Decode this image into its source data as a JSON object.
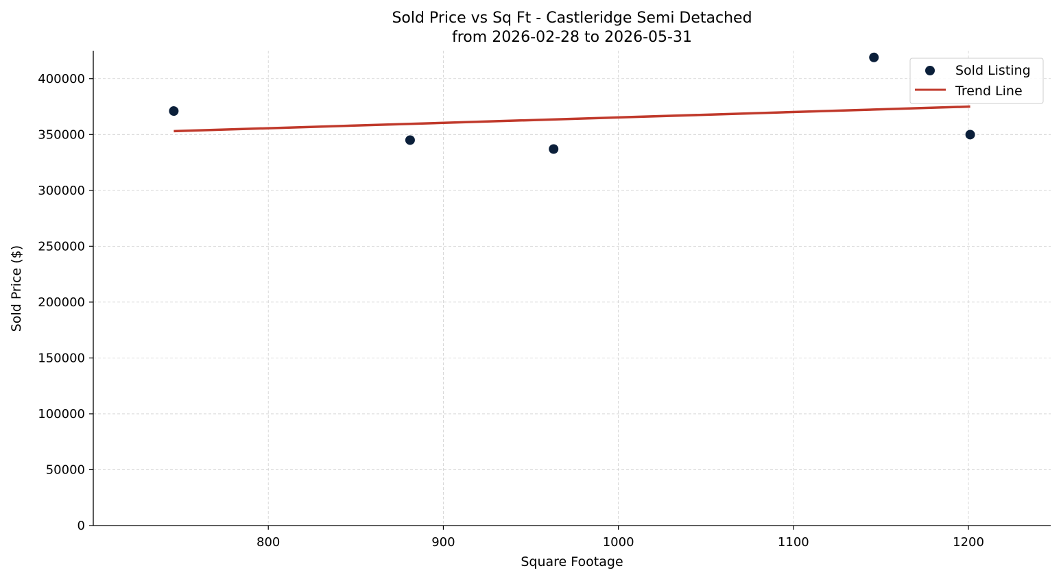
{
  "chart_data": {
    "type": "scatter",
    "title": "Sold Price vs Sq Ft - Castleridge Semi Detached",
    "subtitle": "from 2026-02-28 to 2026-05-31",
    "xlabel": "Square Footage",
    "ylabel": "Sold Price ($)",
    "xlim": [
      700,
      1247
    ],
    "ylim": [
      0,
      425000
    ],
    "xticks": [
      800,
      900,
      1000,
      1100,
      1200
    ],
    "yticks": [
      0,
      50000,
      100000,
      150000,
      200000,
      250000,
      300000,
      350000,
      400000
    ],
    "grid": true,
    "legend_position": "top-right",
    "series": [
      {
        "name": "Sold Listing",
        "kind": "scatter",
        "color": "#0b1f3a",
        "points": [
          {
            "x": 746,
            "y": 371000
          },
          {
            "x": 881,
            "y": 345000
          },
          {
            "x": 963,
            "y": 337000
          },
          {
            "x": 1146,
            "y": 419000
          },
          {
            "x": 1201,
            "y": 349900
          }
        ]
      },
      {
        "name": "Trend Line",
        "kind": "line",
        "color": "#c0392b",
        "points": [
          {
            "x": 746,
            "y": 353000
          },
          {
            "x": 1201,
            "y": 375000
          }
        ]
      }
    ]
  }
}
